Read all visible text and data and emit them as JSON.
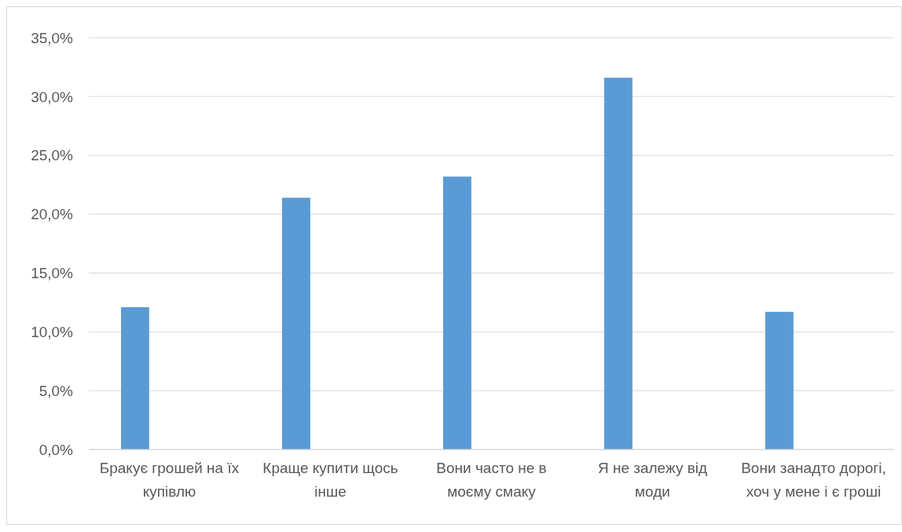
{
  "chart_data": {
    "type": "bar",
    "categories": [
      "Бракує грошей на їх купівлю",
      "Краще купити щось інше",
      "Вони часто не в моєму смаку",
      "Я не залежу від моди",
      "Вони занадто дорогі, хоч у мене і є гроші"
    ],
    "values": [
      12.1,
      21.4,
      23.2,
      31.6,
      11.7
    ],
    "color": "#5b9bd5",
    "ylim": [
      0,
      35
    ],
    "yticks": [
      {
        "value": 0,
        "label": "0,0%"
      },
      {
        "value": 5,
        "label": "5,0%"
      },
      {
        "value": 10,
        "label": "10,0%"
      },
      {
        "value": 15,
        "label": "15,0%"
      },
      {
        "value": 20,
        "label": "20,0%"
      },
      {
        "value": 25,
        "label": "25,0%"
      },
      {
        "value": 30,
        "label": "30,0%"
      },
      {
        "value": 35,
        "label": "35,0%"
      }
    ],
    "grid": "y"
  }
}
